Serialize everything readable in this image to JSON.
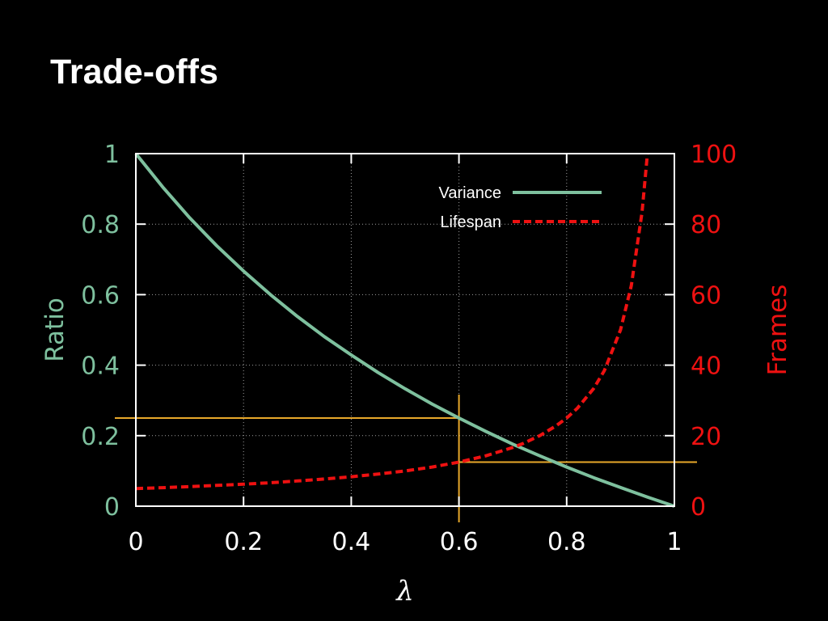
{
  "slide": {
    "title": "Trade-offs"
  },
  "colors": {
    "background": "#000000",
    "axes": "#ffffff",
    "grid": "#a0a0a0",
    "variance": "#7ec09e",
    "lifespan": "#ee1111",
    "marker": "#e8a82a"
  },
  "chart_data": {
    "type": "line",
    "xlabel": "λ",
    "ylabel": "Ratio",
    "y2label": "Frames",
    "xlim": [
      0,
      1
    ],
    "ylim": [
      0,
      1
    ],
    "y2lim": [
      0,
      100
    ],
    "xticks": [
      "0",
      "0.2",
      "0.4",
      "0.6",
      "0.8",
      "1"
    ],
    "yticks": [
      "0",
      "0.2",
      "0.4",
      "0.6",
      "0.8",
      "1"
    ],
    "y2ticks": [
      "0",
      "20",
      "40",
      "60",
      "80",
      "100"
    ],
    "grid": true,
    "legend_position": "top-right",
    "series": [
      {
        "name": "Variance",
        "axis": "left",
        "style": "solid",
        "x": [
          0,
          0.05,
          0.1,
          0.15,
          0.2,
          0.25,
          0.3,
          0.35,
          0.4,
          0.45,
          0.5,
          0.55,
          0.6,
          0.65,
          0.7,
          0.75,
          0.8,
          0.85,
          0.9,
          0.95,
          1
        ],
        "y": [
          1,
          0.905,
          0.818,
          0.739,
          0.667,
          0.6,
          0.538,
          0.481,
          0.429,
          0.379,
          0.333,
          0.29,
          0.25,
          0.212,
          0.176,
          0.143,
          0.111,
          0.081,
          0.053,
          0.026,
          0
        ]
      },
      {
        "name": "Lifespan",
        "axis": "right",
        "style": "dashed",
        "x": [
          0,
          0.05,
          0.1,
          0.15,
          0.2,
          0.25,
          0.3,
          0.35,
          0.4,
          0.45,
          0.5,
          0.55,
          0.6,
          0.65,
          0.7,
          0.72,
          0.75,
          0.78,
          0.8,
          0.82,
          0.85,
          0.87,
          0.9,
          0.92,
          0.94,
          0.95
        ],
        "y": [
          1,
          1.05,
          1.11,
          1.18,
          1.25,
          1.33,
          1.43,
          1.54,
          1.67,
          1.82,
          2.0,
          2.22,
          2.5,
          2.86,
          3.33,
          3.57,
          4.0,
          4.55,
          5.0,
          5.56,
          6.67,
          7.69,
          10.0,
          12.5,
          16.67,
          20.0
        ],
        "scale_note": "y values x 5 = frames"
      }
    ],
    "annotations": [
      {
        "type": "crosshair",
        "x": 0.6,
        "y": 0.25,
        "axis": "left"
      },
      {
        "type": "crosshair",
        "x": 0.6,
        "y": 12.5,
        "axis": "right"
      }
    ]
  }
}
